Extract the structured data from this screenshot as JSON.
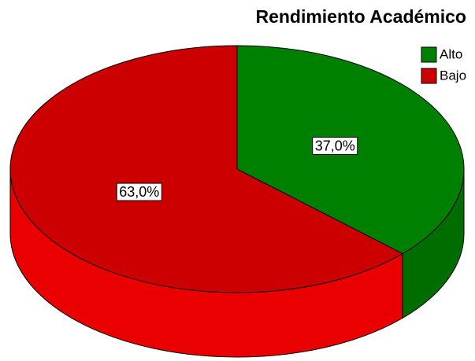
{
  "chart_data": {
    "type": "pie",
    "title": "Rendimiento Académico",
    "categories": [
      "Alto",
      "Bajo"
    ],
    "values": [
      37,
      63
    ],
    "value_labels": [
      "37,0%",
      "63,0%"
    ],
    "colors": [
      "#008000",
      "#cc0000"
    ],
    "legend": "top-right"
  }
}
